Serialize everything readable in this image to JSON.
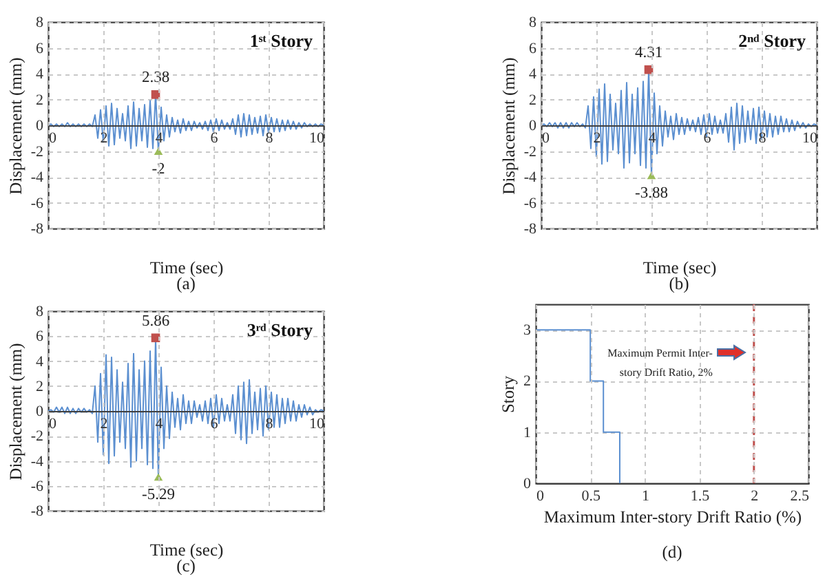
{
  "chart_data": [
    {
      "type": "line",
      "title": "1ˢᵗ Story",
      "xlabel": "Time (sec)",
      "ylabel": "Displacement (mm)",
      "xlim": [
        0,
        10
      ],
      "ylim": [
        -8,
        8
      ],
      "xticks": [
        0,
        2,
        4,
        6,
        8,
        10
      ],
      "yticks": [
        -8,
        -6,
        -4,
        -2,
        0,
        2,
        4,
        6,
        8
      ],
      "grid": true,
      "annotations": [
        "(a)"
      ],
      "x": [
        0,
        0.1,
        0.2,
        0.3,
        0.4,
        0.5,
        0.6,
        0.7,
        0.8,
        0.9,
        1,
        1.1,
        1.2,
        1.3,
        1.4,
        1.5,
        1.6,
        1.7,
        1.8,
        1.9,
        2,
        2.1,
        2.2,
        2.3,
        2.4,
        2.5,
        2.6,
        2.7,
        2.8,
        2.9,
        3,
        3.1,
        3.2,
        3.3,
        3.4,
        3.5,
        3.6,
        3.7,
        3.8,
        3.9,
        4,
        4.1,
        4.2,
        4.3,
        4.4,
        4.5,
        4.6,
        4.7,
        4.8,
        4.9,
        5,
        5.1,
        5.2,
        5.3,
        5.4,
        5.5,
        5.6,
        5.7,
        5.8,
        5.9,
        6,
        6.1,
        6.2,
        6.3,
        6.4,
        6.5,
        6.6,
        6.7,
        6.8,
        6.9,
        7,
        7.1,
        7.2,
        7.3,
        7.4,
        7.5,
        7.6,
        7.7,
        7.8,
        7.9,
        8,
        8.1,
        8.2,
        8.3,
        8.4,
        8.5,
        8.6,
        8.7,
        8.8,
        8.9,
        9,
        9.1,
        9.2,
        9.3,
        9.4,
        9.5,
        9.6,
        9.7,
        9.8,
        9.9,
        10
      ],
      "series": [
        {
          "color": "#5b8fd0",
          "values": [
            0,
            0.1,
            -0.1,
            0.1,
            -0.1,
            0.1,
            -0.1,
            0.2,
            -0.1,
            0.1,
            -0.1,
            0.1,
            -0.1,
            0.1,
            -0.1,
            0.1,
            -0.1,
            0.8,
            -1.0,
            1.2,
            -1.3,
            1.5,
            -1.6,
            1.7,
            -1.5,
            1.3,
            -1.0,
            0.9,
            -1.2,
            1.5,
            -1.8,
            1.8,
            -1.6,
            1.3,
            -1.2,
            1.6,
            -1.7,
            1.9,
            -1.8,
            2.38,
            -2,
            1.4,
            -1.2,
            0.8,
            -0.9,
            0.6,
            -0.5,
            0.4,
            -0.6,
            0.5,
            -0.4,
            0.3,
            -0.4,
            0.3,
            -0.2,
            0.2,
            -0.3,
            0.3,
            -0.4,
            0.4,
            -0.5,
            0.5,
            -0.4,
            0.4,
            -0.3,
            0.2,
            -0.3,
            0.5,
            -0.7,
            0.8,
            -0.9,
            0.9,
            -0.8,
            0.8,
            -0.7,
            0.6,
            -0.6,
            0.7,
            -0.8,
            0.8,
            -0.6,
            0.6,
            -0.5,
            0.5,
            -0.5,
            0.4,
            -0.4,
            0.4,
            -0.3,
            0.3,
            -0.3,
            0.2,
            -0.2,
            0.2,
            -0.1,
            0.1,
            -0.1,
            0.1,
            -0.1,
            0.1,
            0
          ]
        },
        {
          "type": "scatter",
          "marker": "square",
          "color": "#c0504d",
          "x": [
            3.9
          ],
          "values": [
            2.38
          ],
          "value_labels": [
            "2.38"
          ]
        },
        {
          "type": "scatter",
          "marker": "triangle",
          "color": "#9bbb59",
          "x": [
            4
          ],
          "values": [
            -2
          ],
          "value_labels": [
            "-2"
          ]
        }
      ]
    },
    {
      "type": "line",
      "title": "2ⁿᵈ Story",
      "xlabel": "Time (sec)",
      "ylabel": "Displacement (mm)",
      "xlim": [
        0,
        10
      ],
      "ylim": [
        -8,
        8
      ],
      "xticks": [
        0,
        2,
        4,
        6,
        8,
        10
      ],
      "yticks": [
        -8,
        -6,
        -4,
        -2,
        0,
        2,
        4,
        6,
        8
      ],
      "grid": true,
      "annotations": [
        "(b)"
      ],
      "x": [
        0,
        0.1,
        0.2,
        0.3,
        0.4,
        0.5,
        0.6,
        0.7,
        0.8,
        0.9,
        1,
        1.1,
        1.2,
        1.3,
        1.4,
        1.5,
        1.6,
        1.7,
        1.8,
        1.9,
        2,
        2.1,
        2.2,
        2.3,
        2.4,
        2.5,
        2.6,
        2.7,
        2.8,
        2.9,
        3,
        3.1,
        3.2,
        3.3,
        3.4,
        3.5,
        3.6,
        3.7,
        3.8,
        3.9,
        4,
        4.1,
        4.2,
        4.3,
        4.4,
        4.5,
        4.6,
        4.7,
        4.8,
        4.9,
        5,
        5.1,
        5.2,
        5.3,
        5.4,
        5.5,
        5.6,
        5.7,
        5.8,
        5.9,
        6,
        6.1,
        6.2,
        6.3,
        6.4,
        6.5,
        6.6,
        6.7,
        6.8,
        6.9,
        7,
        7.1,
        7.2,
        7.3,
        7.4,
        7.5,
        7.6,
        7.7,
        7.8,
        7.9,
        8,
        8.1,
        8.2,
        8.3,
        8.4,
        8.5,
        8.6,
        8.7,
        8.8,
        8.9,
        9,
        9.1,
        9.2,
        9.3,
        9.4,
        9.5,
        9.6,
        9.7,
        9.8,
        9.9,
        10
      ],
      "series": [
        {
          "color": "#5b8fd0",
          "values": [
            0,
            0.1,
            -0.1,
            0.2,
            -0.1,
            0.2,
            -0.2,
            0.2,
            -0.2,
            0.2,
            -0.2,
            0.2,
            -0.1,
            0.2,
            -0.1,
            0.1,
            -0.2,
            1.5,
            -1.8,
            2.2,
            -2.4,
            2.8,
            -3.0,
            3.2,
            -2.8,
            2.4,
            -1.9,
            1.7,
            -2.2,
            2.7,
            -3.3,
            3.3,
            -2.9,
            2.4,
            -2.2,
            2.9,
            -3.1,
            3.4,
            -3.3,
            4.31,
            -3.88,
            2.5,
            -2.2,
            1.5,
            -1.6,
            1.1,
            -0.9,
            0.7,
            -1.1,
            0.9,
            -0.7,
            0.6,
            -0.7,
            0.5,
            -0.4,
            0.4,
            -0.5,
            0.6,
            -0.7,
            0.8,
            -0.9,
            0.9,
            -0.7,
            0.7,
            -0.6,
            0.4,
            -0.6,
            0.9,
            -1.3,
            1.4,
            -1.9,
            1.7,
            -1.4,
            1.5,
            -1.3,
            1.1,
            -1.1,
            1.3,
            -1.4,
            1.4,
            -1.1,
            1.1,
            -0.9,
            0.9,
            -0.9,
            0.7,
            -0.7,
            0.7,
            -0.5,
            0.5,
            -0.5,
            0.4,
            -0.4,
            0.3,
            -0.2,
            0.2,
            -0.2,
            0.1,
            -0.1,
            0.1,
            0
          ]
        },
        {
          "type": "scatter",
          "marker": "square",
          "color": "#c0504d",
          "x": [
            3.9
          ],
          "values": [
            4.31
          ],
          "value_labels": [
            "4.31"
          ]
        },
        {
          "type": "scatter",
          "marker": "triangle",
          "color": "#9bbb59",
          "x": [
            4
          ],
          "values": [
            -3.88
          ],
          "value_labels": [
            "-3.88"
          ]
        }
      ]
    },
    {
      "type": "line",
      "title": "3ʳᵈ Story",
      "xlabel": "Time (sec)",
      "ylabel": "Displacement (mm)",
      "xlim": [
        0,
        10
      ],
      "ylim": [
        -8,
        8
      ],
      "xticks": [
        0,
        2,
        4,
        6,
        8,
        10
      ],
      "yticks": [
        -8,
        -6,
        -4,
        -2,
        0,
        2,
        4,
        6,
        8
      ],
      "grid": true,
      "annotations": [
        "(c)"
      ],
      "x": [
        0,
        0.1,
        0.2,
        0.3,
        0.4,
        0.5,
        0.6,
        0.7,
        0.8,
        0.9,
        1,
        1.1,
        1.2,
        1.3,
        1.4,
        1.5,
        1.6,
        1.7,
        1.8,
        1.9,
        2,
        2.1,
        2.2,
        2.3,
        2.4,
        2.5,
        2.6,
        2.7,
        2.8,
        2.9,
        3,
        3.1,
        3.2,
        3.3,
        3.4,
        3.5,
        3.6,
        3.7,
        3.8,
        3.9,
        4,
        4.1,
        4.2,
        4.3,
        4.4,
        4.5,
        4.6,
        4.7,
        4.8,
        4.9,
        5,
        5.1,
        5.2,
        5.3,
        5.4,
        5.5,
        5.6,
        5.7,
        5.8,
        5.9,
        6,
        6.1,
        6.2,
        6.3,
        6.4,
        6.5,
        6.6,
        6.7,
        6.8,
        6.9,
        7,
        7.1,
        7.2,
        7.3,
        7.4,
        7.5,
        7.6,
        7.7,
        7.8,
        7.9,
        8,
        8.1,
        8.2,
        8.3,
        8.4,
        8.5,
        8.6,
        8.7,
        8.8,
        8.9,
        9,
        9.1,
        9.2,
        9.3,
        9.4,
        9.5,
        9.6,
        9.7,
        9.8,
        9.9,
        10
      ],
      "series": [
        {
          "color": "#5b8fd0",
          "values": [
            0,
            0.1,
            -0.1,
            0.3,
            -0.1,
            0.3,
            -0.2,
            0.3,
            -0.2,
            0.2,
            -0.2,
            0.2,
            -0.1,
            0.2,
            -0.1,
            0.1,
            -0.2,
            2.0,
            -2.5,
            3.0,
            -3.5,
            4.5,
            -4.2,
            4.3,
            -3.6,
            3.3,
            -2.5,
            2.3,
            -3.0,
            3.8,
            -4.5,
            4.6,
            -4.0,
            3.3,
            -3.0,
            4.0,
            -4.3,
            4.8,
            -4.6,
            5.86,
            -5.29,
            3.5,
            -3.0,
            2.0,
            -2.2,
            1.5,
            -1.3,
            1.0,
            -1.5,
            1.3,
            -1.0,
            0.8,
            -1.0,
            0.8,
            -0.5,
            0.5,
            -0.8,
            0.8,
            -1.0,
            1.0,
            -1.3,
            1.3,
            -1.0,
            1.0,
            -0.8,
            0.5,
            -0.8,
            1.3,
            -1.8,
            2.0,
            -2.3,
            2.3,
            -2.6,
            2.5,
            -1.8,
            1.5,
            -1.5,
            1.8,
            -2.0,
            2.0,
            -1.5,
            1.5,
            -1.3,
            1.3,
            -1.3,
            1.0,
            -1.0,
            1.0,
            -0.8,
            0.8,
            -0.8,
            0.5,
            -0.5,
            0.5,
            -0.3,
            0.3,
            -0.3,
            0.1,
            -0.1,
            0.1,
            0
          ]
        },
        {
          "type": "scatter",
          "marker": "square",
          "color": "#c0504d",
          "x": [
            3.9
          ],
          "values": [
            5.86
          ],
          "value_labels": [
            "5.86"
          ]
        },
        {
          "type": "scatter",
          "marker": "triangle",
          "color": "#9bbb59",
          "x": [
            4
          ],
          "values": [
            -5.29
          ],
          "value_labels": [
            "-5.29"
          ]
        }
      ]
    },
    {
      "type": "line",
      "xlabel": "Maximum Inter-story Drift Ratio (%)",
      "ylabel": "Story",
      "xlim": [
        0,
        2.5
      ],
      "ylim": [
        0,
        3.5
      ],
      "xticks": [
        0,
        0.5,
        1,
        1.5,
        2,
        2.5
      ],
      "yticks": [
        0,
        1,
        2,
        3
      ],
      "grid": true,
      "annotations": [
        "Maximum Permit Inter-story Drift Ratio, 2%",
        "(d)"
      ],
      "ref_lines": [
        {
          "axis": "x",
          "value": 2,
          "color": "#c0504d",
          "line_style": "dashed"
        }
      ],
      "series": [
        {
          "color": "#5b8fd0",
          "x": [
            0,
            0.5,
            0.5,
            0.62,
            0.62,
            0.77,
            0.77
          ],
          "values": [
            3,
            3,
            2,
            2,
            1,
            1,
            0
          ]
        }
      ]
    }
  ]
}
